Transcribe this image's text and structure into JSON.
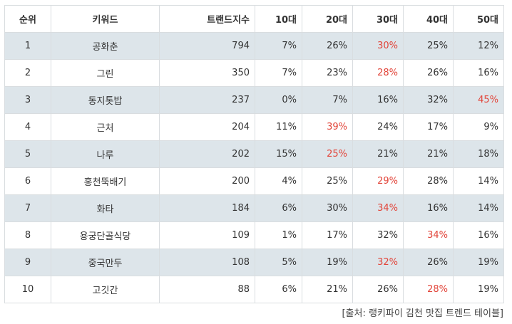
{
  "table": {
    "headers": [
      "순위",
      "키워드",
      "트랜드지수",
      "10대",
      "20대",
      "30대",
      "40대",
      "50대"
    ],
    "rows": [
      {
        "rank": "1",
        "keyword": "공화춘",
        "index": "794",
        "a10": "7%",
        "a20": "26%",
        "a30": "30%",
        "a40": "25%",
        "a50": "12%",
        "highlight": "a30"
      },
      {
        "rank": "2",
        "keyword": "그린",
        "index": "350",
        "a10": "7%",
        "a20": "23%",
        "a30": "28%",
        "a40": "26%",
        "a50": "16%",
        "highlight": "a30"
      },
      {
        "rank": "3",
        "keyword": "동지톳밥",
        "index": "237",
        "a10": "0%",
        "a20": "7%",
        "a30": "16%",
        "a40": "32%",
        "a50": "45%",
        "highlight": "a50"
      },
      {
        "rank": "4",
        "keyword": "근처",
        "index": "204",
        "a10": "11%",
        "a20": "39%",
        "a30": "24%",
        "a40": "17%",
        "a50": "9%",
        "highlight": "a20"
      },
      {
        "rank": "5",
        "keyword": "나루",
        "index": "202",
        "a10": "15%",
        "a20": "25%",
        "a30": "21%",
        "a40": "21%",
        "a50": "18%",
        "highlight": "a20"
      },
      {
        "rank": "6",
        "keyword": "홍천뚝배기",
        "index": "200",
        "a10": "4%",
        "a20": "25%",
        "a30": "29%",
        "a40": "28%",
        "a50": "14%",
        "highlight": "a30"
      },
      {
        "rank": "7",
        "keyword": "화타",
        "index": "184",
        "a10": "6%",
        "a20": "30%",
        "a30": "34%",
        "a40": "16%",
        "a50": "14%",
        "highlight": "a30"
      },
      {
        "rank": "8",
        "keyword": "용궁단골식당",
        "index": "109",
        "a10": "1%",
        "a20": "17%",
        "a30": "32%",
        "a40": "34%",
        "a50": "16%",
        "highlight": "a40"
      },
      {
        "rank": "9",
        "keyword": "중국만두",
        "index": "108",
        "a10": "5%",
        "a20": "19%",
        "a30": "32%",
        "a40": "26%",
        "a50": "19%",
        "highlight": "a30"
      },
      {
        "rank": "10",
        "keyword": "고깃간",
        "index": "88",
        "a10": "6%",
        "a20": "21%",
        "a30": "26%",
        "a40": "28%",
        "a50": "19%",
        "highlight": "a40"
      }
    ]
  },
  "source": "[출처: 랭키파이 김천 맛집 트렌드 테이블]",
  "colors": {
    "highlight": "#e2453a",
    "shaded_row": "#dde5ea",
    "border": "#d9dde0"
  }
}
